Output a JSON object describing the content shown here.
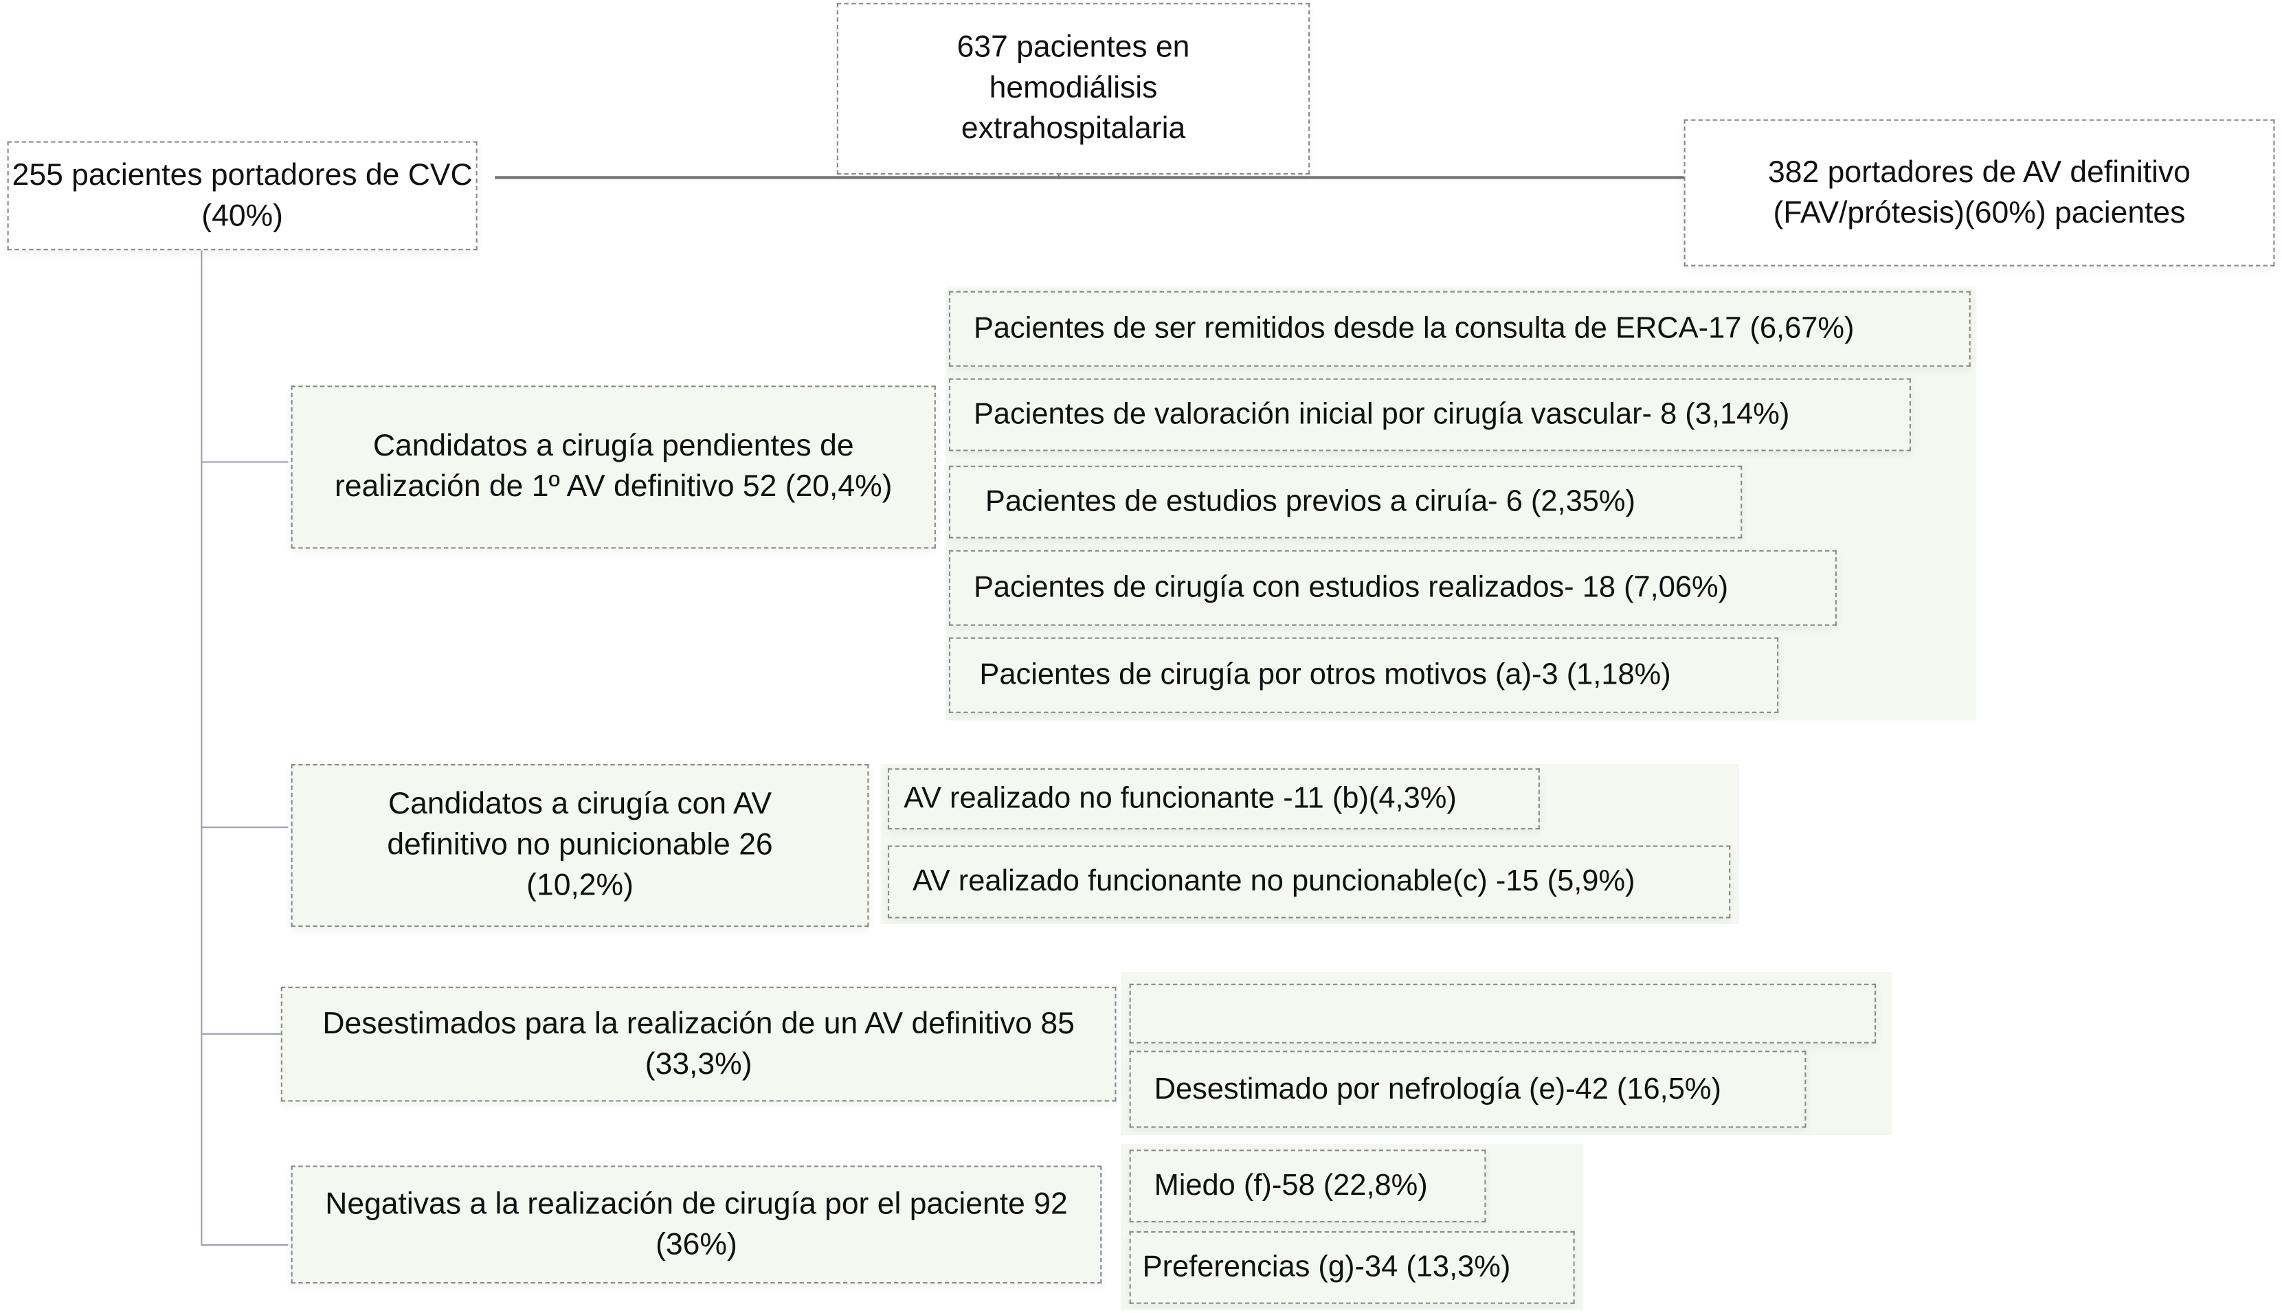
{
  "root": {
    "label": "637 pacientes en hemodiálisis extrahospitalaria"
  },
  "cvc": {
    "label": "255 pacientes portadores de CVC (40%)"
  },
  "av_definitivo": {
    "label": "382 portadores de AV definitivo (FAV/prótesis)(60%) pacientes"
  },
  "groups": [
    {
      "label": "Candidatos a cirugía pendientes de realización de 1º AV definitivo 52 (20,4%)",
      "items": [
        "Pacientes de ser remitidos desde la consulta de ERCA-17 (6,67%)",
        "Pacientes de valoración inicial por cirugía vascular- 8 (3,14%)",
        "Pacientes de estudios previos a ciruía- 6 (2,35%)",
        "Pacientes de cirugía con estudios realizados- 18 (7,06%)",
        "Pacientes de cirugía por otros motivos (a)-3 (1,18%)"
      ]
    },
    {
      "label": "Candidatos a cirugía con AV definitivo no punicionable 26 (10,2%)",
      "items": [
        "AV realizado no funcionante -11 (b)(4,3%)",
        "AV realizado funcionante no puncionable(c) -15 (5,9%)"
      ]
    },
    {
      "label": "Desestimados para la realización de un AV definitivo 85 (33,3%)",
      "items": [
        "",
        "Desestimado por nefrología (e)-42 (16,5%)"
      ]
    },
    {
      "label": "Negativas a la realización de cirugía por el paciente 92 (36%)",
      "items": [
        "Miedo (f)-58 (22,8%)",
        "Preferencias (g)-34 (13,3%)"
      ]
    }
  ],
  "colors": {
    "box_fill": "#f4f8f0",
    "border": "#8a8a8a",
    "connector": "#9aa0b0"
  }
}
